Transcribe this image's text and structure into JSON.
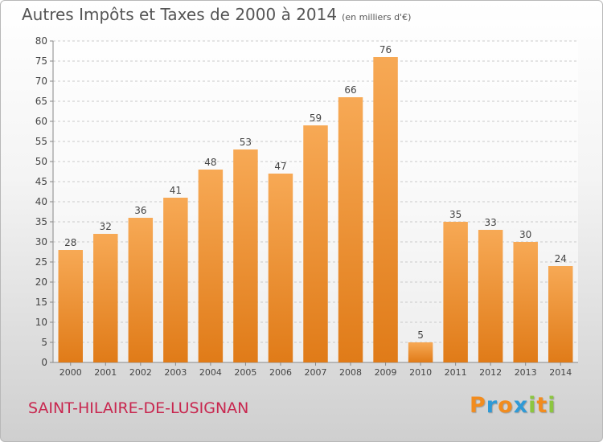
{
  "title": "Autres Impôts et Taxes de 2000 à 2014",
  "subtitle": "(en milliers d'€)",
  "place": "SAINT-HILAIRE-DE-LUSIGNAN",
  "brand": {
    "letters": [
      "P",
      "r",
      "o",
      "x",
      "i",
      "t",
      "i"
    ],
    "colors": [
      "#f28c1e",
      "#2f9ad6",
      "#f28c1e",
      "#2f9ad6",
      "#8cc63f",
      "#f28c1e",
      "#8cc63f"
    ]
  },
  "colors": {
    "bar_top": "#f7a955",
    "bar_bottom": "#e07b18",
    "place": "#c8274f",
    "grid": "#c9c9c9"
  },
  "chart_data": {
    "type": "bar",
    "categories": [
      "2000",
      "2001",
      "2002",
      "2003",
      "2004",
      "2005",
      "2006",
      "2007",
      "2008",
      "2009",
      "2010",
      "2011",
      "2012",
      "2013",
      "2014"
    ],
    "values": [
      28,
      32,
      36,
      41,
      48,
      53,
      47,
      59,
      66,
      76,
      5,
      35,
      33,
      30,
      24
    ],
    "y_ticks": [
      0,
      5,
      10,
      15,
      20,
      25,
      30,
      35,
      40,
      45,
      50,
      55,
      60,
      65,
      70,
      75,
      80
    ],
    "ylim": [
      0,
      80
    ],
    "grid": true,
    "data_labels": true
  }
}
